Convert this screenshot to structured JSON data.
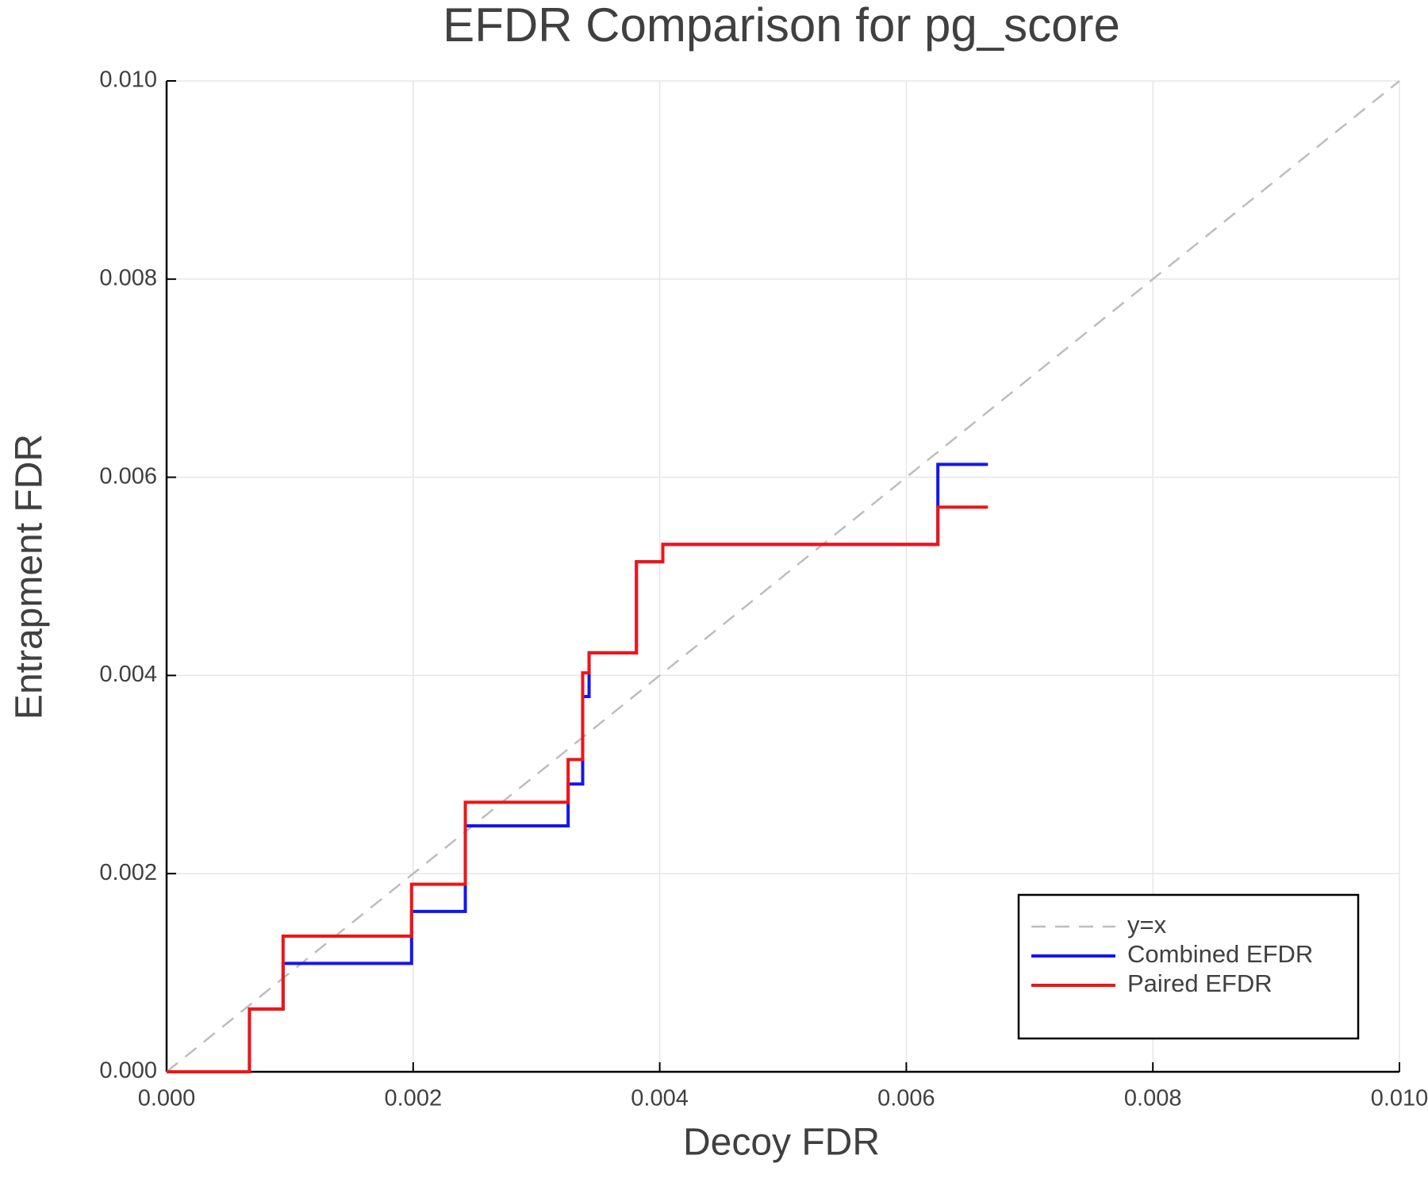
{
  "chart_data": {
    "type": "line",
    "title": "EFDR Comparison for pg_score",
    "xlabel": "Decoy FDR",
    "ylabel": "Entrapment FDR",
    "xlim": [
      0,
      0.01
    ],
    "ylim": [
      0,
      0.01
    ],
    "xticks": [
      {
        "value": 0,
        "label": "0.000"
      },
      {
        "value": 0.002,
        "label": "0.002"
      },
      {
        "value": 0.004,
        "label": "0.004"
      },
      {
        "value": 0.006,
        "label": "0.006"
      },
      {
        "value": 0.008,
        "label": "0.008"
      },
      {
        "value": 0.01,
        "label": "0.010"
      }
    ],
    "yticks": [
      {
        "value": 0,
        "label": "0.000"
      },
      {
        "value": 0.002,
        "label": "0.002"
      },
      {
        "value": 0.004,
        "label": "0.004"
      },
      {
        "value": 0.006,
        "label": "0.006"
      },
      {
        "value": 0.008,
        "label": "0.008"
      },
      {
        "value": 0.01,
        "label": "0.010"
      }
    ],
    "grid": true,
    "legend": "bottom-right",
    "series": [
      {
        "name": "y=x",
        "color": "#bdbdbd",
        "linestyle": "dashed",
        "x": [
          0,
          0.01
        ],
        "values": [
          0,
          0.01
        ]
      },
      {
        "name": "Combined EFDR",
        "color": "#1515f0",
        "linestyle": "solid",
        "x": [
          0,
          0.000672,
          0.000672,
          0.000945,
          0.000945,
          0.001987,
          0.001987,
          0.002423,
          0.002423,
          0.003257,
          0.003257,
          0.003375,
          0.003375,
          0.003427,
          0.003427,
          0.003811,
          0.003811,
          0.004025,
          0.004025,
          0.006256,
          0.006256,
          0.006662
        ],
        "values": [
          0,
          0,
          0.000634,
          0.000634,
          0.001094,
          0.001094,
          0.001618,
          0.001618,
          0.002482,
          0.002482,
          0.002904,
          0.002904,
          0.003787,
          0.003787,
          0.004228,
          0.004228,
          0.005147,
          0.005147,
          0.005322,
          0.005322,
          0.00613,
          0.00613
        ]
      },
      {
        "name": "Paired EFDR",
        "color": "#f01515",
        "linestyle": "solid",
        "x": [
          0,
          0.000672,
          0.000672,
          0.000945,
          0.000945,
          0.001987,
          0.001987,
          0.002423,
          0.002423,
          0.003257,
          0.003257,
          0.003375,
          0.003375,
          0.003427,
          0.003427,
          0.003811,
          0.003811,
          0.004025,
          0.004025,
          0.006256,
          0.006256,
          0.006662
        ],
        "values": [
          0,
          0,
          0.000634,
          0.000634,
          0.001369,
          0.001369,
          0.001893,
          0.001893,
          0.00272,
          0.00272,
          0.003152,
          0.003152,
          0.004026,
          0.004026,
          0.004228,
          0.004228,
          0.005147,
          0.005147,
          0.005322,
          0.005322,
          0.005699,
          0.005699
        ]
      }
    ]
  }
}
